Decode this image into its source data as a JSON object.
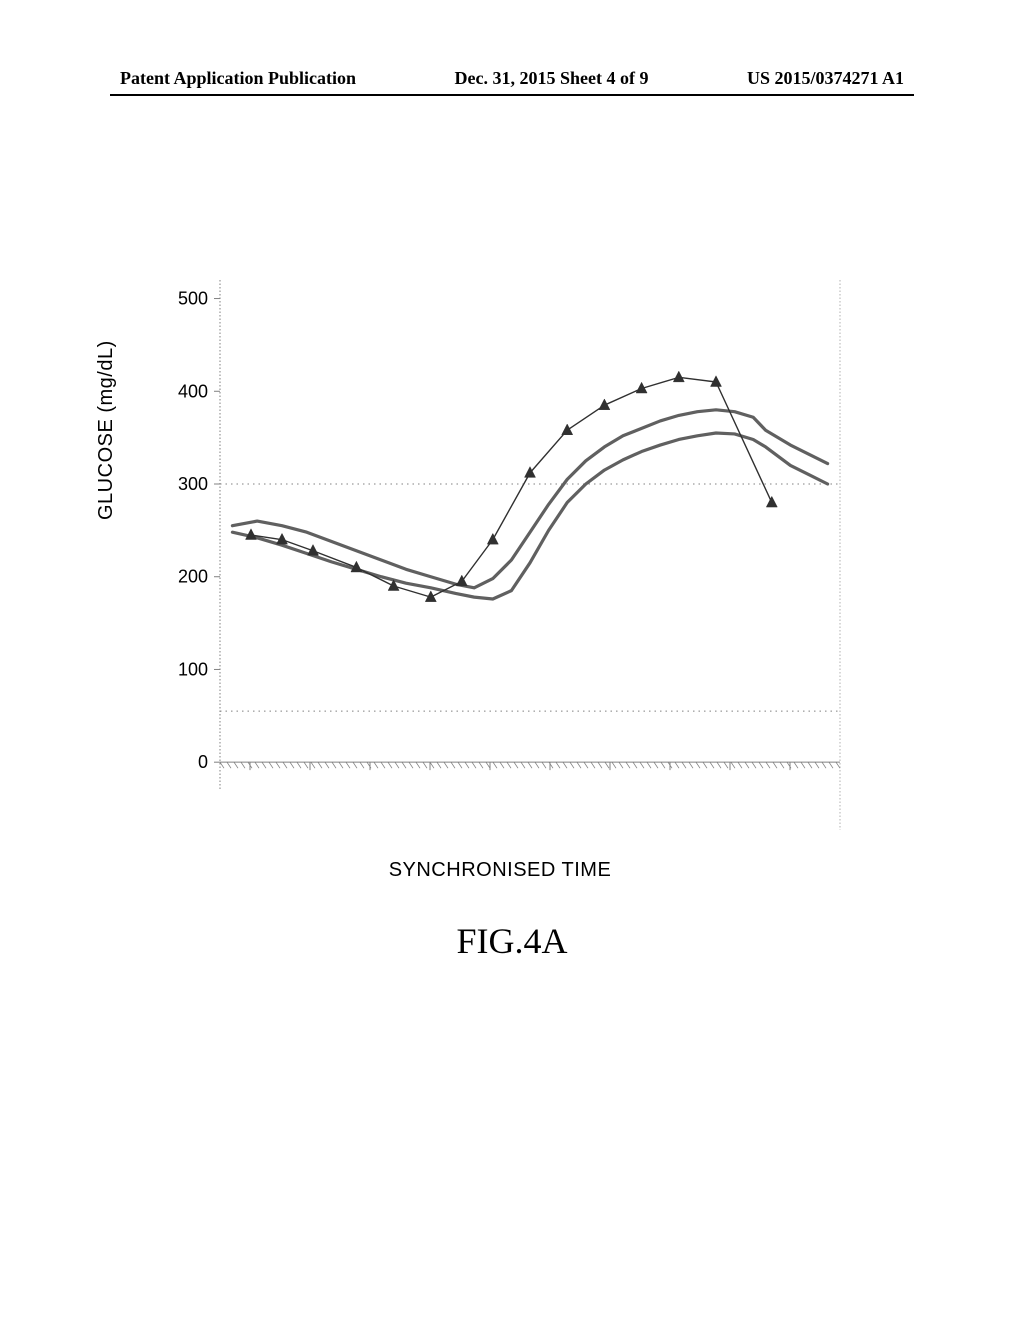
{
  "header": {
    "left": "Patent Application Publication",
    "center": "Dec. 31, 2015  Sheet 4 of 9",
    "right": "US 2015/0374271 A1"
  },
  "chart": {
    "type": "line",
    "ylabel": "GLUCOSE (mg/dL)",
    "xlabel": "SYNCHRONISED TIME",
    "xlim": [
      0,
      100
    ],
    "ylim": [
      -30,
      520
    ],
    "yticks": [
      0,
      100,
      200,
      300,
      400,
      500
    ],
    "ref_lines_y": [
      55,
      300
    ],
    "background_color": "#ffffff",
    "axis_color": "#808080",
    "grid_color": "#808080",
    "grid_dash": "1.5,2",
    "ref_line_color": "#808080",
    "ref_line_dash": "1.5,4",
    "baseline_hatch_color": "#808080",
    "right_border_color": "#b0b0b0",
    "right_border_dash": "1.5,2",
    "series": {
      "markers": {
        "color": "#303030",
        "line_width": 1.4,
        "marker": "triangle",
        "marker_size": 10,
        "marker_fill": "#303030",
        "points": [
          [
            5,
            245
          ],
          [
            10,
            240
          ],
          [
            15,
            228
          ],
          [
            22,
            210
          ],
          [
            28,
            190
          ],
          [
            34,
            178
          ],
          [
            39,
            195
          ],
          [
            44,
            240
          ],
          [
            50,
            312
          ],
          [
            56,
            358
          ],
          [
            62,
            385
          ],
          [
            68,
            403
          ],
          [
            74,
            415
          ],
          [
            80,
            410
          ],
          [
            89,
            280
          ]
        ]
      },
      "upper": {
        "color": "#606060",
        "line_width": 3.2,
        "points": [
          [
            2,
            255
          ],
          [
            6,
            260
          ],
          [
            10,
            255
          ],
          [
            14,
            248
          ],
          [
            18,
            238
          ],
          [
            22,
            228
          ],
          [
            26,
            218
          ],
          [
            30,
            208
          ],
          [
            34,
            200
          ],
          [
            38,
            192
          ],
          [
            41,
            188
          ],
          [
            44,
            198
          ],
          [
            47,
            218
          ],
          [
            50,
            248
          ],
          [
            53,
            278
          ],
          [
            56,
            305
          ],
          [
            59,
            325
          ],
          [
            62,
            340
          ],
          [
            65,
            352
          ],
          [
            68,
            360
          ],
          [
            71,
            368
          ],
          [
            74,
            374
          ],
          [
            77,
            378
          ],
          [
            80,
            380
          ],
          [
            83,
            378
          ],
          [
            86,
            372
          ],
          [
            88,
            358
          ],
          [
            90,
            350
          ],
          [
            92,
            342
          ],
          [
            95,
            332
          ],
          [
            98,
            322
          ]
        ]
      },
      "lower": {
        "color": "#606060",
        "line_width": 3.2,
        "points": [
          [
            2,
            248
          ],
          [
            6,
            242
          ],
          [
            10,
            234
          ],
          [
            14,
            225
          ],
          [
            18,
            216
          ],
          [
            22,
            208
          ],
          [
            26,
            200
          ],
          [
            30,
            193
          ],
          [
            34,
            188
          ],
          [
            38,
            182
          ],
          [
            41,
            178
          ],
          [
            44,
            176
          ],
          [
            47,
            185
          ],
          [
            50,
            215
          ],
          [
            53,
            250
          ],
          [
            56,
            280
          ],
          [
            59,
            300
          ],
          [
            62,
            315
          ],
          [
            65,
            326
          ],
          [
            68,
            335
          ],
          [
            71,
            342
          ],
          [
            74,
            348
          ],
          [
            77,
            352
          ],
          [
            80,
            355
          ],
          [
            83,
            354
          ],
          [
            86,
            348
          ],
          [
            88,
            340
          ],
          [
            90,
            330
          ],
          [
            92,
            320
          ],
          [
            95,
            310
          ],
          [
            98,
            300
          ]
        ]
      }
    }
  },
  "figure_caption": "FIG.4A",
  "typography": {
    "header_font": "Times New Roman",
    "header_fontsize": 18,
    "header_weight": "bold",
    "axis_label_font": "Arial",
    "axis_label_fontsize": 20,
    "tick_font": "Arial",
    "tick_fontsize": 18,
    "caption_font": "Times New Roman",
    "caption_fontsize": 36
  }
}
